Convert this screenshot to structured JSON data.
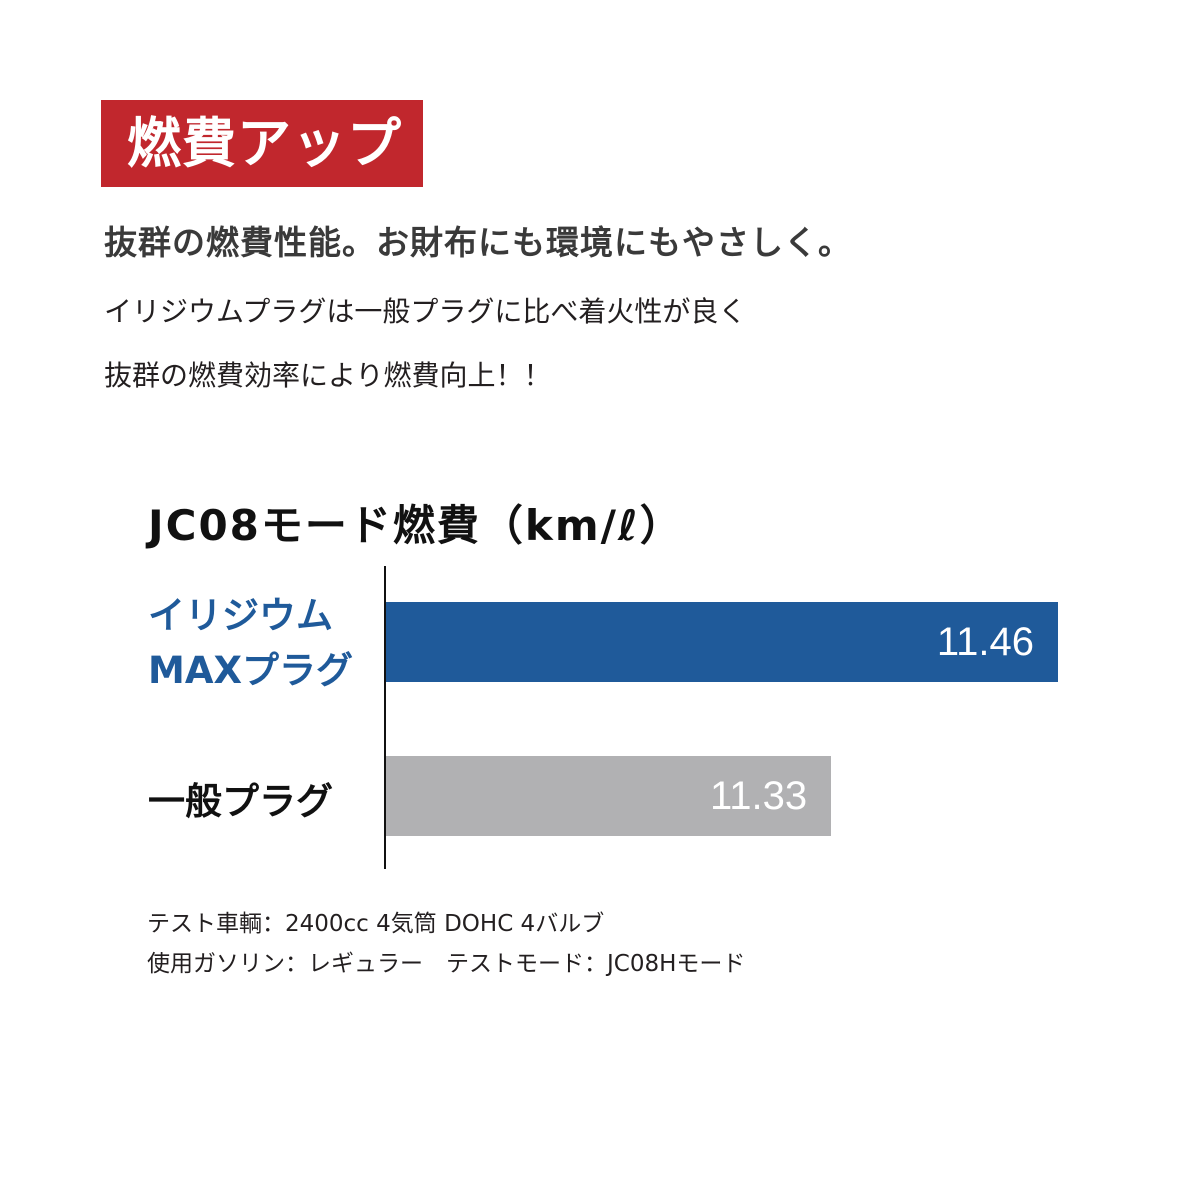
{
  "header": {
    "badge": "燃費アップ",
    "headline": "抜群の燃費性能。お財布にも環境にもやさしく。",
    "body_lines": [
      "イリジウムプラグは一般プラグに比べ着火性が良く",
      "抜群の燃費効率により燃費向上！！"
    ]
  },
  "colors": {
    "badge": "#c1272d",
    "iridium": "#1f5a9a",
    "standard": "#b1b1b3"
  },
  "chart_data": {
    "type": "bar",
    "orientation": "horizontal",
    "title": "JC08モード燃費（km/ℓ）",
    "categories": [
      {
        "line1": "イリジウム",
        "line2": "MAXプラグ"
      },
      {
        "line1": "一般プラグ",
        "line2": ""
      }
    ],
    "values": [
      11.46,
      11.33
    ],
    "value_labels": [
      "11.46",
      "11.33"
    ],
    "xlim": [
      11.075,
      11.46
    ],
    "grid": false
  },
  "notes": [
    "テスト車輌：2400cc 4気筒 DOHC 4バルブ",
    "使用ガソリン：レギュラー　テストモード：JC08Hモード"
  ]
}
